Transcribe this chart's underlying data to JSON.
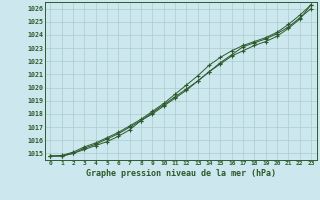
{
  "title": "Graphe pression niveau de la mer (hPa)",
  "bg_color": "#cce8ee",
  "grid_color": "#aacccc",
  "line_color": "#2d5a2d",
  "x_labels": [
    "0",
    "1",
    "2",
    "3",
    "4",
    "5",
    "6",
    "7",
    "8",
    "9",
    "10",
    "11",
    "12",
    "13",
    "14",
    "15",
    "16",
    "17",
    "18",
    "19",
    "20",
    "21",
    "22",
    "23"
  ],
  "ylim": [
    1014.5,
    1026.5
  ],
  "yticks": [
    1015,
    1016,
    1017,
    1018,
    1019,
    1020,
    1021,
    1022,
    1023,
    1024,
    1025,
    1026
  ],
  "series1": [
    1014.8,
    1014.8,
    1015.0,
    1015.3,
    1015.6,
    1015.9,
    1016.3,
    1016.8,
    1017.5,
    1018.1,
    1018.7,
    1019.3,
    1019.9,
    1020.5,
    1021.2,
    1021.8,
    1022.4,
    1022.8,
    1023.2,
    1023.5,
    1023.9,
    1024.5,
    1025.2,
    1026.3
  ],
  "series2": [
    1014.8,
    1014.8,
    1015.0,
    1015.4,
    1015.7,
    1016.1,
    1016.5,
    1017.0,
    1017.5,
    1018.0,
    1018.6,
    1019.2,
    1019.8,
    1020.5,
    1021.2,
    1021.9,
    1022.5,
    1023.1,
    1023.4,
    1023.7,
    1024.1,
    1024.6,
    1025.3,
    1026.0
  ],
  "series3": [
    1014.8,
    1014.85,
    1015.1,
    1015.5,
    1015.8,
    1016.2,
    1016.6,
    1017.1,
    1017.6,
    1018.2,
    1018.8,
    1019.5,
    1020.2,
    1020.9,
    1021.7,
    1022.3,
    1022.8,
    1023.2,
    1023.5,
    1023.8,
    1024.2,
    1024.8,
    1025.5,
    1026.3
  ]
}
